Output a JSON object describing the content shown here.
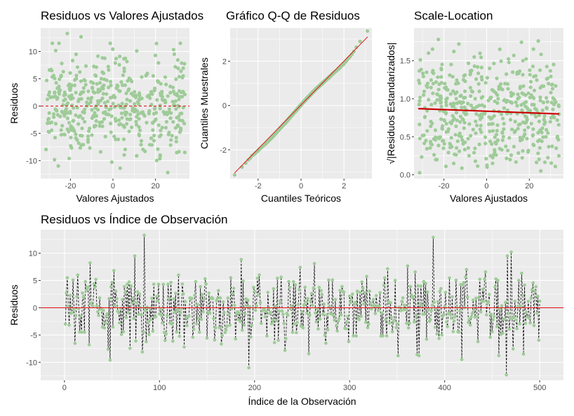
{
  "colors": {
    "point": "#9ecb98",
    "ref_line": "#e41a1c",
    "loess": "#cc0000",
    "connector": "#000000",
    "panel": "#ebebeb"
  },
  "chart_data": [
    {
      "id": "resid_vs_fitted",
      "type": "scatter",
      "title": "Residuos vs Valores Ajustados",
      "xlabel": "Valores Ajustados",
      "ylabel": "Residuos",
      "xlim": [
        -34,
        36
      ],
      "ylim": [
        -13.3,
        14.3
      ],
      "xticks": [
        -20,
        0,
        20
      ],
      "yticks": [
        -10,
        -5,
        0,
        5,
        10
      ],
      "xtick_labels": [
        "-20",
        "0",
        "20"
      ],
      "ytick_labels": [
        "-10",
        "-5",
        "0",
        "5",
        "10"
      ],
      "ref_line": {
        "y": 0,
        "style": "dashed"
      },
      "n_points": 500,
      "points": [
        [
          -29.6,
          -3.1
        ],
        [
          -28.8,
          6.5
        ],
        [
          -27.5,
          2.4
        ],
        [
          -26.9,
          -0.7
        ],
        [
          -25.2,
          4.9
        ],
        [
          -24.1,
          7.8
        ],
        [
          -23.0,
          -5.2
        ],
        [
          -22.4,
          2.1
        ],
        [
          -21.5,
          13.3
        ],
        [
          -20.6,
          -9.6
        ],
        [
          -19.8,
          1.3
        ],
        [
          -18.4,
          -4.4
        ],
        [
          -17.2,
          5.6
        ],
        [
          -16.1,
          -2.0
        ],
        [
          -15.0,
          12.7
        ],
        [
          -14.2,
          -1.1
        ],
        [
          -12.8,
          3.9
        ],
        [
          -11.7,
          -6.6
        ],
        [
          -10.5,
          0.7
        ],
        [
          -9.3,
          4.2
        ],
        [
          -8.1,
          -3.6
        ],
        [
          -6.9,
          2.9
        ],
        [
          -5.8,
          -8.4
        ],
        [
          -4.4,
          6.0
        ],
        [
          -3.2,
          -1.5
        ],
        [
          -2.1,
          3.4
        ],
        [
          -0.9,
          -4.8
        ],
        [
          0.4,
          1.9
        ],
        [
          1.5,
          8.7
        ],
        [
          2.8,
          -2.6
        ],
        [
          3.9,
          4.4
        ],
        [
          5.1,
          -6.1
        ],
        [
          6.3,
          0.3
        ],
        [
          7.5,
          3.1
        ],
        [
          8.8,
          -3.9
        ],
        [
          10.1,
          2.6
        ],
        [
          11.2,
          10.1
        ],
        [
          12.4,
          -5.4
        ],
        [
          13.6,
          1.4
        ],
        [
          14.9,
          -1.8
        ],
        [
          16.0,
          5.8
        ],
        [
          17.3,
          -7.1
        ],
        [
          18.5,
          2.2
        ],
        [
          19.7,
          -0.4
        ],
        [
          21.0,
          4.6
        ],
        [
          22.2,
          -9.0
        ],
        [
          23.4,
          1.1
        ],
        [
          24.6,
          5.3
        ],
        [
          25.8,
          -12.2
        ],
        [
          27.0,
          3.6
        ],
        [
          28.3,
          -2.9
        ],
        [
          29.5,
          0.9
        ],
        [
          30.7,
          6.9
        ],
        [
          31.9,
          -4.1
        ],
        [
          33.1,
          2.5
        ],
        [
          33.8,
          -8.5
        ]
      ]
    },
    {
      "id": "qq_plot",
      "type": "scatter",
      "title": "Gráfico Q-Q de Residuos",
      "xlabel": "Cuantiles Teóricos",
      "ylabel": "Cuantiles Muestrales",
      "xlim": [
        -3.3,
        3.3
      ],
      "ylim": [
        -3.3,
        3.5
      ],
      "xticks": [
        -2,
        0,
        2
      ],
      "yticks": [
        -2,
        0,
        2
      ],
      "xtick_labels": [
        "-2",
        "0",
        "2"
      ],
      "ytick_labels": [
        "-2",
        "0",
        "2"
      ],
      "ref_line": {
        "x": [
          -3.1,
          3.1
        ],
        "y": [
          -3.05,
          3.1
        ]
      },
      "n_points": 500,
      "points": [
        [
          -3.05,
          -3.1
        ],
        [
          -2.75,
          -2.8
        ],
        [
          -2.5,
          -2.5
        ],
        [
          -2.3,
          -2.3
        ],
        [
          -2.1,
          -2.12
        ],
        [
          -1.9,
          -1.95
        ],
        [
          -1.7,
          -1.77
        ],
        [
          -1.5,
          -1.58
        ],
        [
          -1.3,
          -1.38
        ],
        [
          -1.1,
          -1.17
        ],
        [
          -0.9,
          -0.95
        ],
        [
          -0.7,
          -0.75
        ],
        [
          -0.5,
          -0.52
        ],
        [
          -0.3,
          -0.3
        ],
        [
          -0.1,
          -0.08
        ],
        [
          0.1,
          0.14
        ],
        [
          0.3,
          0.35
        ],
        [
          0.5,
          0.55
        ],
        [
          0.7,
          0.75
        ],
        [
          0.9,
          0.92
        ],
        [
          1.1,
          1.1
        ],
        [
          1.3,
          1.27
        ],
        [
          1.5,
          1.45
        ],
        [
          1.7,
          1.62
        ],
        [
          1.9,
          1.8
        ],
        [
          2.1,
          2.0
        ],
        [
          2.3,
          2.25
        ],
        [
          2.5,
          2.5
        ],
        [
          2.75,
          2.9
        ],
        [
          2.95,
          3.3
        ],
        [
          3.05,
          3.35
        ]
      ]
    },
    {
      "id": "scale_location",
      "type": "scatter",
      "title": "Scale-Location",
      "xlabel": "Valores Ajustados",
      "ylabel": "√|Residuos Estandarizados|",
      "xlim": [
        -34,
        36
      ],
      "ylim": [
        -0.05,
        1.93
      ],
      "xticks": [
        -20,
        0,
        20
      ],
      "yticks": [
        0.0,
        0.5,
        1.0,
        1.5
      ],
      "xtick_labels": [
        "-20",
        "0",
        "20"
      ],
      "ytick_labels": [
        "0.0",
        "0.5",
        "1.0",
        "1.5"
      ],
      "smooth_line": {
        "x": [
          -32,
          34
        ],
        "y": [
          0.87,
          0.8
        ]
      },
      "n_points": 500,
      "points": [
        [
          -29.5,
          1.05
        ],
        [
          -28.4,
          0.45
        ],
        [
          -27.2,
          1.6
        ],
        [
          -26.1,
          0.7
        ],
        [
          -25.0,
          1.2
        ],
        [
          -23.8,
          0.2
        ],
        [
          -22.6,
          1.78
        ],
        [
          -21.4,
          0.95
        ],
        [
          -20.2,
          0.35
        ],
        [
          -19.0,
          1.15
        ],
        [
          -17.8,
          0.6
        ],
        [
          -16.6,
          1.45
        ],
        [
          -15.4,
          0.15
        ],
        [
          -14.2,
          1.0
        ],
        [
          -13.0,
          1.72
        ],
        [
          -11.8,
          0.5
        ],
        [
          -10.6,
          1.3
        ],
        [
          -9.4,
          0.8
        ],
        [
          -8.2,
          0.25
        ],
        [
          -7.0,
          1.1
        ],
        [
          -5.8,
          1.55
        ],
        [
          -4.6,
          0.65
        ],
        [
          -3.4,
          0.4
        ],
        [
          -2.2,
          1.25
        ],
        [
          -1.0,
          0.9
        ],
        [
          0.2,
          0.1
        ],
        [
          1.4,
          1.4
        ],
        [
          2.6,
          0.75
        ],
        [
          3.8,
          0.3
        ],
        [
          5.0,
          1.05
        ],
        [
          6.2,
          1.65
        ],
        [
          7.4,
          0.55
        ],
        [
          8.6,
          1.2
        ],
        [
          9.8,
          0.85
        ],
        [
          11.0,
          0.2
        ],
        [
          12.2,
          1.35
        ],
        [
          13.4,
          0.7
        ],
        [
          14.6,
          1.0
        ],
        [
          15.8,
          0.45
        ],
        [
          17.0,
          1.5
        ],
        [
          18.2,
          0.9
        ],
        [
          19.4,
          0.3
        ],
        [
          20.6,
          1.15
        ],
        [
          21.8,
          0.6
        ],
        [
          23.0,
          1.3
        ],
        [
          24.2,
          1.76
        ],
        [
          25.4,
          0.05
        ],
        [
          26.6,
          0.95
        ],
        [
          27.8,
          0.5
        ],
        [
          29.0,
          1.2
        ],
        [
          30.2,
          0.75
        ],
        [
          31.4,
          1.45
        ],
        [
          32.6,
          0.35
        ],
        [
          33.8,
          0.9
        ]
      ]
    },
    {
      "id": "resid_vs_index",
      "type": "line",
      "title": "Residuos vs Índice de Observación",
      "xlabel": "Índice de la Observación",
      "ylabel": "Residuos",
      "xlim": [
        -25,
        525
      ],
      "ylim": [
        -13.3,
        14.3
      ],
      "xticks": [
        0,
        100,
        200,
        300,
        400,
        500
      ],
      "yticks": [
        -10,
        -5,
        0,
        5,
        10
      ],
      "xtick_labels": [
        "0",
        "100",
        "200",
        "300",
        "400",
        "500"
      ],
      "ytick_labels": [
        "-10",
        "-5",
        "0",
        "5",
        "10"
      ],
      "ref_line": {
        "y": 0,
        "style": "solid"
      },
      "n_points": 500,
      "points": [
        [
          1,
          -3.0
        ],
        [
          3,
          5.5
        ],
        [
          5,
          -3.2
        ],
        [
          9,
          5.1
        ],
        [
          13,
          2.0
        ],
        [
          17,
          -1.5
        ],
        [
          21,
          -4.5
        ],
        [
          25,
          3.8
        ],
        [
          29,
          0.5
        ],
        [
          33,
          5.2
        ],
        [
          37,
          1.8
        ],
        [
          41,
          -0.5
        ],
        [
          45,
          -1.1
        ],
        [
          48,
          -9.6
        ],
        [
          52,
          6.8
        ],
        [
          57,
          -0.9
        ],
        [
          61,
          1.5
        ],
        [
          65,
          -1.8
        ],
        [
          70,
          4.0
        ],
        [
          75,
          -6.1
        ],
        [
          79,
          2.5
        ],
        [
          82,
          -8.1
        ],
        [
          84,
          13.3
        ],
        [
          88,
          -2.6
        ],
        [
          93,
          -4.3
        ],
        [
          97,
          2.1
        ],
        [
          102,
          -1.4
        ],
        [
          106,
          -6.0
        ],
        [
          111,
          -2.8
        ],
        [
          115,
          1.6
        ],
        [
          120,
          6.0
        ],
        [
          126,
          -7.2
        ],
        [
          131,
          -1.5
        ],
        [
          137,
          2.3
        ],
        [
          142,
          -4.5
        ],
        [
          148,
          5.3
        ],
        [
          153,
          -1.0
        ],
        [
          158,
          -5.9
        ],
        [
          164,
          1.8
        ],
        [
          171,
          -3.4
        ],
        [
          177,
          2.6
        ],
        [
          183,
          -2.2
        ],
        [
          188,
          4.9
        ],
        [
          194,
          -11.0
        ],
        [
          198,
          -2.1
        ],
        [
          203,
          5.4
        ],
        [
          208,
          -0.6
        ],
        [
          214,
          2.8
        ],
        [
          219,
          -2.3
        ],
        [
          224,
          5.4
        ],
        [
          230,
          -1.2
        ],
        [
          236,
          4.8
        ],
        [
          242,
          -3.0
        ],
        [
          248,
          7.4
        ],
        [
          252,
          0.5
        ],
        [
          258,
          -1.3
        ],
        [
          263,
          8.1
        ],
        [
          266,
          -0.2
        ],
        [
          271,
          2.4
        ],
        [
          276,
          -1.3
        ],
        [
          282,
          5.1
        ],
        [
          288,
          -2.4
        ],
        [
          293,
          3.0
        ],
        [
          298,
          -1.6
        ],
        [
          303,
          2.5
        ],
        [
          309,
          -1.8
        ],
        [
          314,
          3.6
        ],
        [
          320,
          -3.0
        ],
        [
          325,
          1.5
        ],
        [
          330,
          -0.5
        ],
        [
          336,
          4.1
        ],
        [
          342,
          -2.8
        ],
        [
          348,
          5.0
        ],
        [
          351,
          -8.8
        ],
        [
          356,
          1.8
        ],
        [
          362,
          -3.7
        ],
        [
          367,
          2.0
        ],
        [
          373,
          -8.8
        ],
        [
          378,
          4.8
        ],
        [
          384,
          -2.5
        ],
        [
          388,
          12.9
        ],
        [
          391,
          -0.3
        ],
        [
          396,
          3.5
        ],
        [
          402,
          -2.6
        ],
        [
          408,
          2.0
        ],
        [
          414,
          -4.4
        ],
        [
          419,
          4.2
        ],
        [
          425,
          -2.7
        ],
        [
          430,
          1.4
        ],
        [
          435,
          -6.2
        ],
        [
          440,
          3.4
        ],
        [
          445,
          0.8
        ],
        [
          451,
          -2.2
        ],
        [
          456,
          5.0
        ],
        [
          461,
          -4.7
        ],
        [
          465,
          -12.3
        ],
        [
          470,
          10.2
        ],
        [
          474,
          1.2
        ],
        [
          478,
          5.0
        ],
        [
          483,
          -8.5
        ],
        [
          487,
          -1.7
        ],
        [
          492,
          3.3
        ],
        [
          497,
          -1.0
        ],
        [
          500,
          1.2
        ]
      ]
    }
  ]
}
